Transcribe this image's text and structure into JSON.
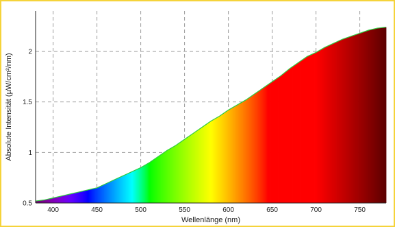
{
  "chart_data": {
    "type": "area",
    "title": "",
    "xlabel": "Wellenlänge (nm)",
    "ylabel": "Absolute Intensität (µW/cm²/nm)",
    "xlim": [
      380,
      780
    ],
    "ylim": [
      0.5,
      2.4
    ],
    "x_ticks": [
      400,
      450,
      500,
      550,
      600,
      650,
      700,
      750
    ],
    "y_ticks": [
      0.5,
      1,
      1.5,
      2
    ],
    "y_tick_labels": [
      "0.5",
      "1",
      "1.5",
      "2"
    ],
    "grid": true,
    "fill": "spectral colors by wavelength",
    "edge_color": "#2ecc40",
    "series": [
      {
        "x": [
          380,
          390,
          400,
          410,
          420,
          430,
          440,
          450,
          460,
          470,
          480,
          490,
          500,
          510,
          520,
          530,
          540,
          550,
          560,
          570,
          580,
          590,
          600,
          610,
          620,
          630,
          640,
          650,
          660,
          670,
          680,
          690,
          700,
          710,
          720,
          730,
          740,
          750,
          760,
          770,
          780
        ],
        "y": [
          0.52,
          0.53,
          0.55,
          0.57,
          0.59,
          0.61,
          0.63,
          0.65,
          0.69,
          0.73,
          0.77,
          0.81,
          0.85,
          0.9,
          0.96,
          1.02,
          1.07,
          1.13,
          1.19,
          1.25,
          1.31,
          1.36,
          1.42,
          1.47,
          1.52,
          1.58,
          1.64,
          1.7,
          1.76,
          1.83,
          1.89,
          1.95,
          1.99,
          2.04,
          2.08,
          2.12,
          2.15,
          2.18,
          2.21,
          2.23,
          2.24
        ]
      }
    ]
  }
}
